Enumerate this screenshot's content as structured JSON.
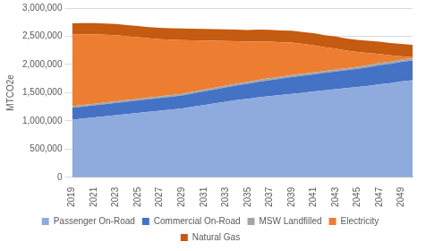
{
  "chart_data": {
    "type": "area",
    "stacked": true,
    "grid": true,
    "legend": "bottom",
    "ylabel": "MTCO2e",
    "categories": [
      "2019",
      null,
      "2021",
      null,
      "2023",
      null,
      "2025",
      null,
      "2027",
      null,
      "2029",
      null,
      "2031",
      null,
      "2033",
      null,
      "2035",
      null,
      "2037",
      null,
      "2039",
      null,
      "2041",
      null,
      "2043",
      null,
      "2045",
      null,
      "2047",
      null,
      "2049",
      null
    ],
    "ylim": [
      0,
      3000000
    ],
    "yticks": [
      0,
      {
        "value": 500000,
        "label": "500,000"
      },
      {
        "value": 1000000,
        "label": "1,000,000"
      },
      {
        "value": 1500000,
        "label": "1,500,000"
      },
      {
        "value": 2000000,
        "label": "2,000,000"
      },
      {
        "value": 2500000,
        "label": "2,500,000"
      },
      {
        "value": 3000000,
        "label": "3,000,000"
      }
    ],
    "series": [
      {
        "name": "Passenger On-Road",
        "color": "#8faadc",
        "values": [
          1020000,
          1040000,
          1060000,
          1080000,
          1100000,
          1120000,
          1140000,
          1160000,
          1180000,
          1200000,
          1220000,
          1250000,
          1280000,
          1310000,
          1340000,
          1370000,
          1390000,
          1420000,
          1440000,
          1460000,
          1480000,
          1500000,
          1520000,
          1540000,
          1560000,
          1580000,
          1600000,
          1620000,
          1650000,
          1670000,
          1700000,
          1720000
        ]
      },
      {
        "name": "Commercial On-Road",
        "color": "#4472c4",
        "values": [
          210000,
          212000,
          214000,
          216000,
          218000,
          220000,
          222000,
          224000,
          226000,
          228000,
          230000,
          236000,
          242000,
          248000,
          254000,
          260000,
          267000,
          274000,
          281000,
          288000,
          295000,
          300000,
          305000,
          310000,
          315000,
          320000,
          325000,
          330000,
          335000,
          340000,
          345000,
          350000
        ]
      },
      {
        "name": "MSW Landfilled",
        "color": "#a5a5a5",
        "values": [
          30000,
          30000,
          30000,
          30000,
          30000,
          30000,
          30000,
          30000,
          30000,
          30000,
          30000,
          30000,
          30000,
          30000,
          30000,
          30000,
          35000,
          35000,
          35000,
          35000,
          35000,
          35000,
          35000,
          35000,
          35000,
          35000,
          35000,
          40000,
          40000,
          40000,
          40000,
          40000
        ]
      },
      {
        "name": "Electricity",
        "color": "#ed7d31",
        "values": [
          1270000,
          1250000,
          1230000,
          1200000,
          1170000,
          1130000,
          1090000,
          1050000,
          1010000,
          980000,
          950000,
          910000,
          870000,
          830000,
          790000,
          750000,
          710000,
          680000,
          650000,
          610000,
          580000,
          530000,
          480000,
          420000,
          370000,
          310000,
          260000,
          210000,
          160000,
          110000,
          60000,
          20000
        ]
      },
      {
        "name": "Natural Gas",
        "color": "#c55a11",
        "values": [
          200000,
          200000,
          200000,
          200000,
          200000,
          200000,
          200000,
          200000,
          205000,
          205000,
          210000,
          210000,
          210000,
          210000,
          210000,
          210000,
          210000,
          210000,
          210000,
          210000,
          210000,
          210000,
          215000,
          215000,
          215000,
          215000,
          215000,
          220000,
          220000,
          220000,
          220000,
          220000
        ]
      }
    ]
  }
}
